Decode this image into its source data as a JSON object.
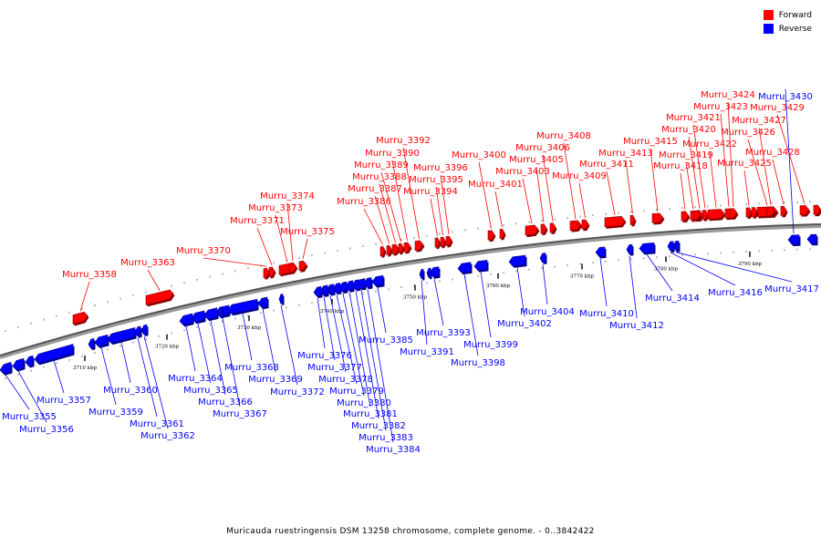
{
  "legend": {
    "forward_label": "Forward",
    "forward_color": "#ff0000",
    "reverse_label": "Reverse",
    "reverse_color": "#0000ff"
  },
  "caption": "Muricauda ruestringensis DSM 13258 chromosome, complete genome. - 0..3842422",
  "ticks": [
    "3710 kbp",
    "3720 kbp",
    "3730 kbp",
    "3740 kbp",
    "3750 kbp",
    "3760 kbp",
    "3770 kbp",
    "3780 kbp",
    "3790 kbp"
  ],
  "forward_genes": [
    "Murru_3358",
    "Murru_3363",
    "Murru_3370",
    "Murru_3371",
    "Murru_3373",
    "Murru_3374",
    "Murru_3375",
    "Murru_3386",
    "Murru_3387",
    "Murru_3388",
    "Murru_3389",
    "Murru_3390",
    "Murru_3392",
    "Murru_3394",
    "Murru_3395",
    "Murru_3396",
    "Murru_3400",
    "Murru_3401",
    "Murru_3403",
    "Murru_3405",
    "Murru_3406",
    "Murru_3408",
    "Murru_3409",
    "Murru_3411",
    "Murru_3413",
    "Murru_3415",
    "Murru_3418",
    "Murru_3419",
    "Murru_3420",
    "Murru_3421",
    "Murru_3422",
    "Murru_3423",
    "Murru_3424",
    "Murru_3425",
    "Murru_3426",
    "Murru_3427",
    "Murru_3428",
    "Murru_3429"
  ],
  "reverse_genes": [
    "Murru_3355",
    "Murru_3356",
    "Murru_3357",
    "Murru_3359",
    "Murru_3360",
    "Murru_3361",
    "Murru_3362",
    "Murru_3364",
    "Murru_3365",
    "Murru_3366",
    "Murru_3367",
    "Murru_3368",
    "Murru_3369",
    "Murru_3372",
    "Murru_3376",
    "Murru_3377",
    "Murru_3378",
    "Murru_3379",
    "Murru_3380",
    "Murru_3381",
    "Murru_3382",
    "Murru_3383",
    "Murru_3384",
    "Murru_3385",
    "Murru_3391",
    "Murru_3393",
    "Murru_3398",
    "Murru_3399",
    "Murru_3402",
    "Murru_3404",
    "Murru_3410",
    "Murru_3412",
    "Murru_3414",
    "Murru_3416",
    "Murru_3417",
    "Murru_3430"
  ]
}
